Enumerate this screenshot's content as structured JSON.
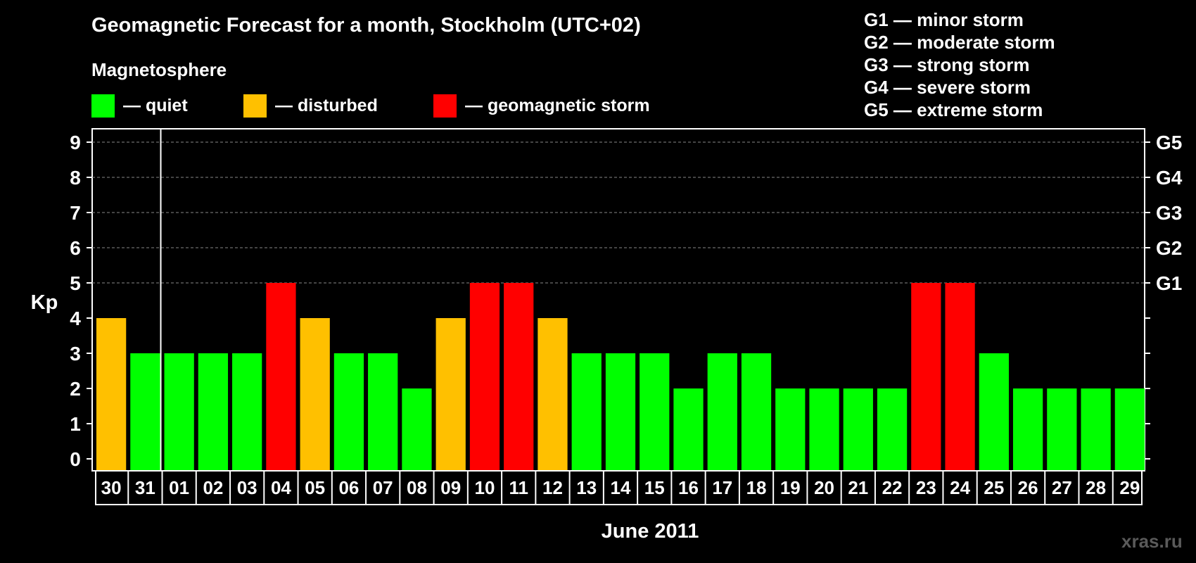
{
  "title": "Geomagnetic Forecast for a month, Stockholm (UTC+02)",
  "subtitle": "Magnetosphere",
  "legend": [
    {
      "label": "— quiet",
      "color": "#00ff00"
    },
    {
      "label": "— disturbed",
      "color": "#ffc000"
    },
    {
      "label": "— geomagnetic storm",
      "color": "#ff0000"
    }
  ],
  "g_scale": [
    "G1 — minor storm",
    "G2 — moderate storm",
    "G3 — strong storm",
    "G4 — severe storm",
    "G5 — extreme storm"
  ],
  "watermark": "xras.ru",
  "colors": {
    "quiet": "#00ff00",
    "disturbed": "#ffc000",
    "storm": "#ff0000"
  },
  "chart_data": {
    "type": "bar",
    "ylabel": "Kp",
    "xlabel": "June 2011",
    "ylim": [
      0,
      9
    ],
    "yticks": [
      0,
      1,
      2,
      3,
      4,
      5,
      6,
      7,
      8,
      9
    ],
    "right_axis_labels": [
      {
        "kp": 5,
        "label": "G1"
      },
      {
        "kp": 6,
        "label": "G2"
      },
      {
        "kp": 7,
        "label": "G3"
      },
      {
        "kp": 8,
        "label": "G4"
      },
      {
        "kp": 9,
        "label": "G5"
      }
    ],
    "grid": "dashed at Kp 5-9",
    "categories": [
      "30",
      "31",
      "01",
      "02",
      "03",
      "04",
      "05",
      "06",
      "07",
      "08",
      "09",
      "10",
      "11",
      "12",
      "13",
      "14",
      "15",
      "16",
      "17",
      "18",
      "19",
      "20",
      "21",
      "22",
      "23",
      "24",
      "25",
      "26",
      "27",
      "28",
      "29"
    ],
    "values": [
      4,
      3,
      3,
      3,
      3,
      5,
      4,
      3,
      3,
      2,
      4,
      5,
      5,
      4,
      3,
      3,
      3,
      2,
      3,
      3,
      2,
      2,
      2,
      2,
      5,
      5,
      3,
      2,
      2,
      2,
      2
    ],
    "status": [
      "disturbed",
      "quiet",
      "quiet",
      "quiet",
      "quiet",
      "storm",
      "disturbed",
      "quiet",
      "quiet",
      "quiet",
      "disturbed",
      "storm",
      "storm",
      "disturbed",
      "quiet",
      "quiet",
      "quiet",
      "quiet",
      "quiet",
      "quiet",
      "quiet",
      "quiet",
      "quiet",
      "quiet",
      "storm",
      "storm",
      "quiet",
      "quiet",
      "quiet",
      "quiet",
      "quiet"
    ]
  }
}
